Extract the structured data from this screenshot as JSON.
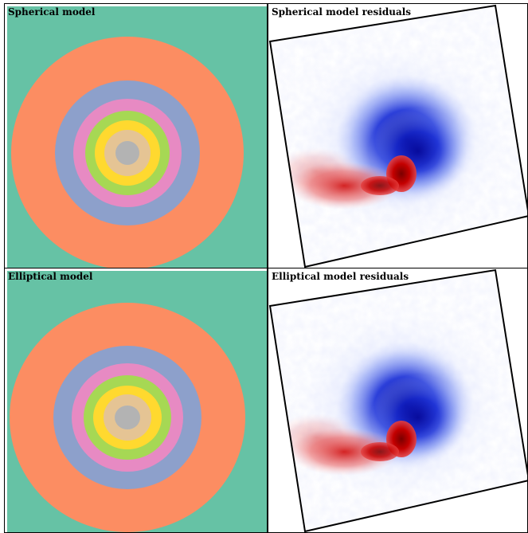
{
  "panels": {
    "spherical_model": {
      "title": "Spherical model"
    },
    "spherical_residuals": {
      "title": "Spherical model residuals"
    },
    "elliptical_model": {
      "title": "Elliptical model"
    },
    "elliptical_residuals": {
      "title": "Elliptical model residuals"
    }
  },
  "colors": {
    "background": "#66c2a5",
    "rings": [
      "#fc8d62",
      "#8da0cb",
      "#e78ac3",
      "#a6d854",
      "#ffd92f",
      "#e5c494",
      "#b3b3b3"
    ],
    "residual_positive": "#cc0000",
    "residual_negative": "#0000cc"
  }
}
